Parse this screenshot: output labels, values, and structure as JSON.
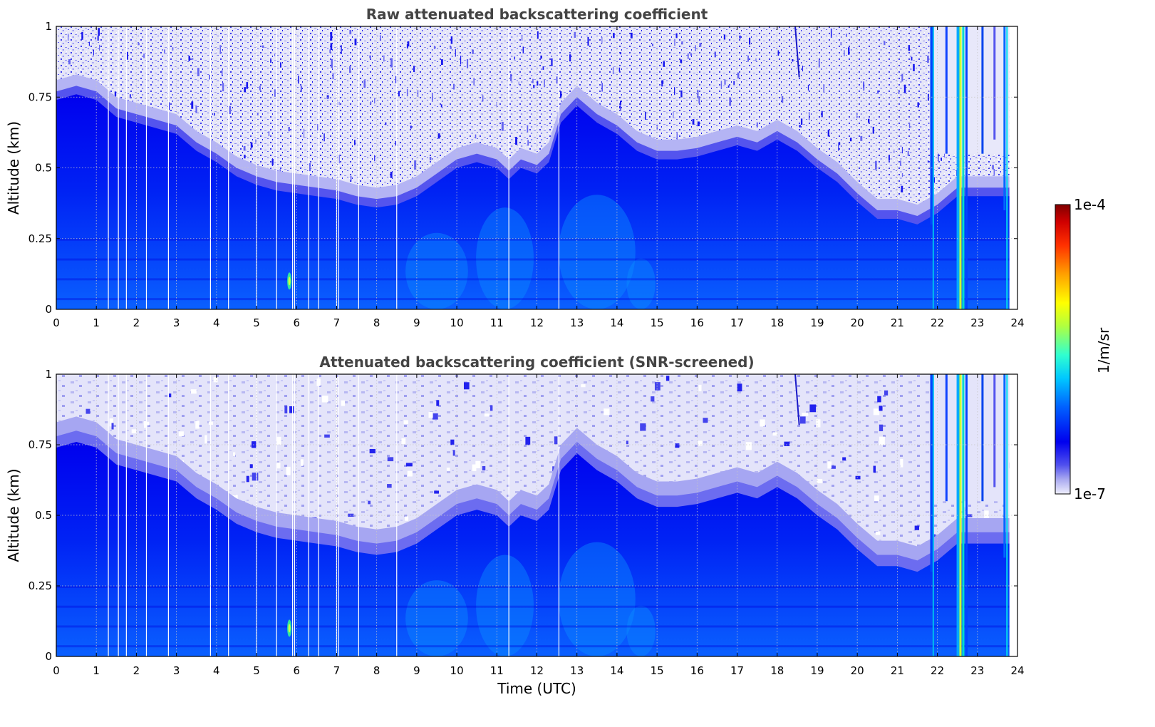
{
  "chart_data": [
    {
      "type": "heatmap",
      "title": "Raw attenuated backscattering coefficient",
      "xlabel": "",
      "ylabel": "Altitude (km)",
      "xlim": [
        0,
        24
      ],
      "ylim": [
        0,
        1
      ],
      "xticks": [
        "0",
        "1",
        "2",
        "3",
        "4",
        "5",
        "6",
        "7",
        "8",
        "9",
        "10",
        "11",
        "12",
        "13",
        "14",
        "15",
        "16",
        "17",
        "18",
        "19",
        "20",
        "21",
        "22",
        "23",
        "24"
      ],
      "yticks": [
        "0",
        "0.25",
        "0.5",
        "0.75",
        "1"
      ],
      "grid": true,
      "screened": false,
      "boundary_layer_top_km": [
        [
          0,
          0.74
        ],
        [
          0.5,
          0.76
        ],
        [
          1,
          0.74
        ],
        [
          1.5,
          0.68
        ],
        [
          2,
          0.66
        ],
        [
          2.5,
          0.64
        ],
        [
          3,
          0.62
        ],
        [
          3.5,
          0.56
        ],
        [
          4,
          0.52
        ],
        [
          4.5,
          0.47
        ],
        [
          5,
          0.44
        ],
        [
          5.5,
          0.42
        ],
        [
          6,
          0.41
        ],
        [
          6.5,
          0.4
        ],
        [
          7,
          0.39
        ],
        [
          7.5,
          0.37
        ],
        [
          8,
          0.36
        ],
        [
          8.5,
          0.37
        ],
        [
          9,
          0.4
        ],
        [
          9.5,
          0.45
        ],
        [
          10,
          0.5
        ],
        [
          10.5,
          0.52
        ],
        [
          11,
          0.5
        ],
        [
          11.3,
          0.46
        ],
        [
          11.6,
          0.5
        ],
        [
          12,
          0.48
        ],
        [
          12.3,
          0.52
        ],
        [
          12.6,
          0.66
        ],
        [
          13,
          0.72
        ],
        [
          13.5,
          0.66
        ],
        [
          14,
          0.62
        ],
        [
          14.5,
          0.56
        ],
        [
          15,
          0.53
        ],
        [
          15.5,
          0.53
        ],
        [
          16,
          0.54
        ],
        [
          16.5,
          0.56
        ],
        [
          17,
          0.58
        ],
        [
          17.5,
          0.56
        ],
        [
          18,
          0.6
        ],
        [
          18.5,
          0.56
        ],
        [
          19,
          0.5
        ],
        [
          19.5,
          0.45
        ],
        [
          20,
          0.38
        ],
        [
          20.5,
          0.32
        ],
        [
          21,
          0.32
        ],
        [
          21.5,
          0.3
        ],
        [
          22,
          0.34
        ],
        [
          22.5,
          0.4
        ],
        [
          23,
          0.4
        ],
        [
          23.8,
          0.4
        ]
      ],
      "gap_times_h": [
        1.3,
        1.55,
        1.75,
        2.25,
        2.8,
        3.85,
        4.3,
        5.0,
        5.5,
        5.9,
        5.95,
        6.3,
        6.55,
        7.0,
        7.05,
        7.55,
        8.5,
        11.3,
        12.55
      ]
    },
    {
      "type": "heatmap",
      "title": "Attenuated backscattering coefficient (SNR-screened)",
      "xlabel": "Time (UTC)",
      "ylabel": "Altitude (km)",
      "xlim": [
        0,
        24
      ],
      "ylim": [
        0,
        1
      ],
      "xticks": [
        "0",
        "1",
        "2",
        "3",
        "4",
        "5",
        "6",
        "7",
        "8",
        "9",
        "10",
        "11",
        "12",
        "13",
        "14",
        "15",
        "16",
        "17",
        "18",
        "19",
        "20",
        "21",
        "22",
        "23",
        "24"
      ],
      "yticks": [
        "0",
        "0.25",
        "0.5",
        "0.75",
        "1"
      ],
      "grid": true,
      "screened": true,
      "boundary_layer_top_km": [
        [
          0,
          0.74
        ],
        [
          0.5,
          0.76
        ],
        [
          1,
          0.74
        ],
        [
          1.5,
          0.68
        ],
        [
          2,
          0.66
        ],
        [
          2.5,
          0.64
        ],
        [
          3,
          0.62
        ],
        [
          3.5,
          0.56
        ],
        [
          4,
          0.52
        ],
        [
          4.5,
          0.47
        ],
        [
          5,
          0.44
        ],
        [
          5.5,
          0.42
        ],
        [
          6,
          0.41
        ],
        [
          6.5,
          0.4
        ],
        [
          7,
          0.39
        ],
        [
          7.5,
          0.37
        ],
        [
          8,
          0.36
        ],
        [
          8.5,
          0.37
        ],
        [
          9,
          0.4
        ],
        [
          9.5,
          0.45
        ],
        [
          10,
          0.5
        ],
        [
          10.5,
          0.52
        ],
        [
          11,
          0.5
        ],
        [
          11.3,
          0.46
        ],
        [
          11.6,
          0.5
        ],
        [
          12,
          0.48
        ],
        [
          12.3,
          0.52
        ],
        [
          12.6,
          0.66
        ],
        [
          13,
          0.72
        ],
        [
          13.5,
          0.66
        ],
        [
          14,
          0.62
        ],
        [
          14.5,
          0.56
        ],
        [
          15,
          0.53
        ],
        [
          15.5,
          0.53
        ],
        [
          16,
          0.54
        ],
        [
          16.5,
          0.56
        ],
        [
          17,
          0.58
        ],
        [
          17.5,
          0.56
        ],
        [
          18,
          0.6
        ],
        [
          18.5,
          0.56
        ],
        [
          19,
          0.5
        ],
        [
          19.5,
          0.45
        ],
        [
          20,
          0.38
        ],
        [
          20.5,
          0.32
        ],
        [
          21,
          0.32
        ],
        [
          21.5,
          0.3
        ],
        [
          22,
          0.34
        ],
        [
          22.5,
          0.4
        ],
        [
          23,
          0.4
        ],
        [
          23.8,
          0.4
        ]
      ],
      "gap_times_h": [
        1.3,
        1.55,
        1.75,
        2.25,
        2.8,
        3.85,
        4.3,
        5.0,
        5.5,
        5.9,
        5.95,
        6.3,
        6.55,
        7.0,
        7.05,
        7.55,
        8.5,
        11.3,
        12.55
      ]
    }
  ],
  "colorbar": {
    "max_label": "1e-4",
    "min_label": "1e-7",
    "unit_label": "1/m/sr",
    "scale": "log",
    "colors": [
      "#e8e8fa",
      "#aaaaf0",
      "#6a6aee",
      "#2828f0",
      "#0000ee",
      "#0033ff",
      "#0077ff",
      "#00bbff",
      "#00ffee",
      "#55ff99",
      "#aaff44",
      "#ffff00",
      "#ffbb00",
      "#ff7700",
      "#ff3300",
      "#dd0000",
      "#880000"
    ]
  }
}
